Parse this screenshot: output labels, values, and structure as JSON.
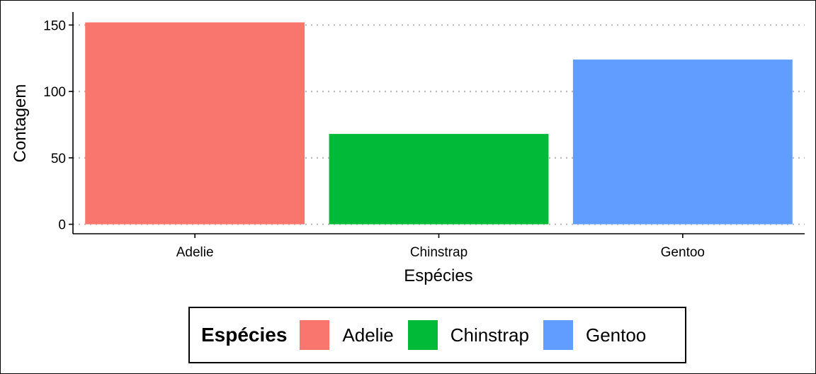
{
  "chart_data": {
    "type": "bar",
    "title": "",
    "xlabel": "Espécies",
    "ylabel": "Contagem",
    "categories": [
      "Adelie",
      "Chinstrap",
      "Gentoo"
    ],
    "values": [
      152,
      68,
      124
    ],
    "colors": [
      "#F8766D",
      "#00BA38",
      "#619CFF"
    ],
    "ylim": [
      0,
      160
    ],
    "yticks": [
      0,
      50,
      100,
      150
    ],
    "grid": "horizontal-dotted",
    "legend": {
      "title": "Espécies",
      "placement": "bottom",
      "items": [
        "Adelie",
        "Chinstrap",
        "Gentoo"
      ]
    }
  }
}
